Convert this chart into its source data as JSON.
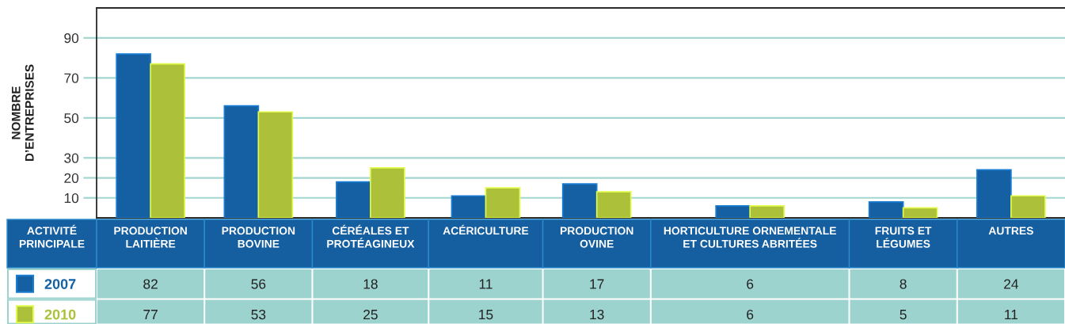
{
  "chart_data": {
    "type": "bar",
    "xlabel": "ACTIVITÉ\nPRINCIPALE",
    "ylabel": "NOMBRE\nD’ENTREPRISES",
    "categories": [
      "PRODUCTION\nLAITIÈRE",
      "PRODUCTION\nBOVINE",
      "CÉRÉALES ET\nPROTÉAGINEUX",
      "ACÉRICULTURE",
      "PRODUCTION\nOVINE",
      "HORTICULTURE ORNEMENTALE\nET CULTURES ABRITÉES",
      "FRUITS ET\nLÉGUMES",
      "AUTRES"
    ],
    "series": [
      {
        "name": "2007",
        "color": "#1460a3",
        "values": [
          82,
          56,
          18,
          11,
          17,
          6,
          8,
          24
        ]
      },
      {
        "name": "2010",
        "color": "#adc03a",
        "values": [
          77,
          53,
          25,
          15,
          13,
          6,
          5,
          11
        ]
      }
    ],
    "ylim": [
      0,
      105
    ],
    "yticks": [
      10,
      20,
      30,
      50,
      70,
      90
    ],
    "grid": "y",
    "legend": "bottom left",
    "data_labels": true
  }
}
